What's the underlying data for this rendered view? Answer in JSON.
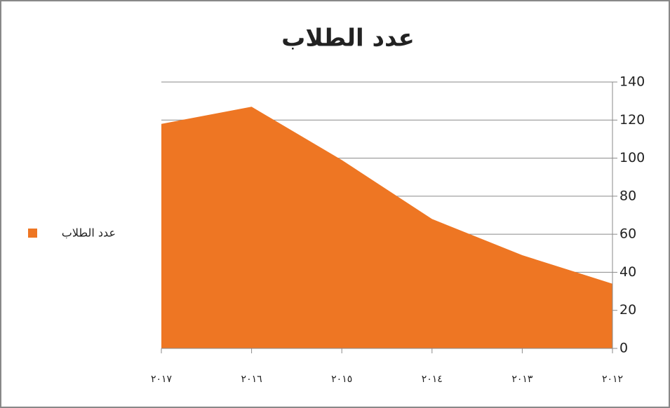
{
  "chart_data": {
    "type": "area",
    "title": "عدد الطلاب",
    "categories": [
      "٢٠١٧",
      "٢٠١٦",
      "٢٠١٥",
      "٢٠١٤",
      "٢٠١٣",
      "٢٠١٢"
    ],
    "series": [
      {
        "name": "عدد الطلاب",
        "color": "#EE7623",
        "values": [
          118,
          127,
          99,
          68,
          49,
          34
        ]
      }
    ],
    "ylim": [
      0,
      140
    ],
    "yticks": [
      0,
      20,
      40,
      60,
      80,
      100,
      120,
      140
    ],
    "grid": true,
    "legend": "left"
  }
}
